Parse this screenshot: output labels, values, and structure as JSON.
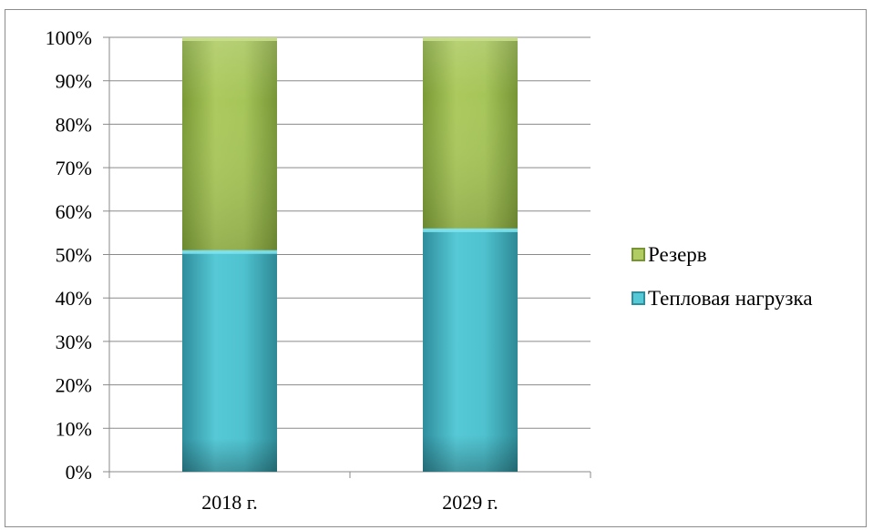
{
  "chart_data": {
    "type": "bar",
    "stacked": true,
    "categories": [
      "2018 г.",
      "2029 г."
    ],
    "series": [
      {
        "name": "Тепловая нагрузка",
        "values": [
          51,
          56
        ],
        "color": "#4bbccb"
      },
      {
        "name": "Резерв",
        "values": [
          49,
          44
        ],
        "color": "#a3c255"
      }
    ],
    "ylim": [
      0,
      100
    ],
    "yticks": [
      "0%",
      "10%",
      "20%",
      "30%",
      "40%",
      "50%",
      "60%",
      "70%",
      "80%",
      "90%",
      "100%"
    ],
    "title": "",
    "xlabel": "",
    "ylabel": "",
    "grid": true,
    "legend_position": "right",
    "legend_order": [
      "Резерв",
      "Тепловая нагрузка"
    ]
  }
}
